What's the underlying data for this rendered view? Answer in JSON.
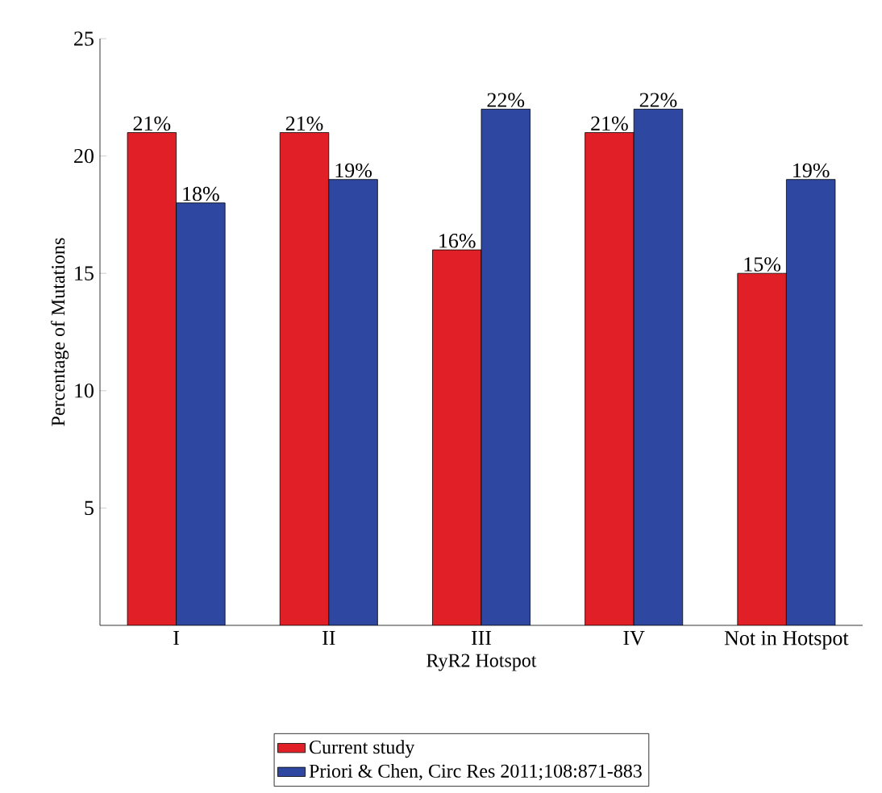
{
  "chart_data": {
    "type": "bar",
    "xlabel": "RyR2 Hotspot",
    "ylabel": "Percentage of Mutations",
    "categories": [
      "I",
      "II",
      "III",
      "IV",
      "Not in Hotspot"
    ],
    "series": [
      {
        "name": "Current study",
        "color": "#e01f26",
        "values": [
          21,
          21,
          16,
          21,
          15
        ],
        "value_labels": [
          "21%",
          "21%",
          "16%",
          "21%",
          "15%"
        ]
      },
      {
        "name": "Priori & Chen, Circ Res 2011;108:871-883",
        "color": "#2e47a0",
        "values": [
          18,
          19,
          22,
          22,
          19
        ],
        "value_labels": [
          "18%",
          "19%",
          "22%",
          "22%",
          "19%"
        ]
      }
    ],
    "ylim": [
      0,
      25
    ],
    "yticks": [
      5,
      10,
      15,
      20,
      25
    ],
    "grid": false,
    "legend": "bottom"
  }
}
